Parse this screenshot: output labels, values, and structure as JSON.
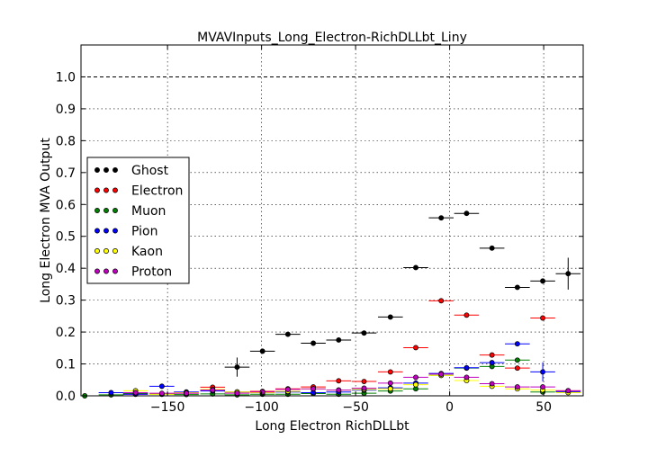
{
  "chart_data": {
    "type": "scatter",
    "title": "MVAVInputs_Long_Electron-RichDLLbt_Liny",
    "xlabel": "Long Electron RichDLLbt",
    "ylabel": "Long Electron MVA Output",
    "xlim": [
      -196,
      71
    ],
    "ylim": [
      0.0,
      1.1
    ],
    "xticks": [
      -150,
      -100,
      -50,
      0,
      50
    ],
    "xtick_labels": [
      "−150",
      "−100",
      "−50",
      "0",
      "50"
    ],
    "yticks": [
      0.0,
      0.1,
      0.2,
      0.3,
      0.4,
      0.5,
      0.6,
      0.7,
      0.8,
      0.9,
      1.0
    ],
    "ytick_labels": [
      "0.0",
      "0.1",
      "0.2",
      "0.3",
      "0.4",
      "0.5",
      "0.6",
      "0.7",
      "0.8",
      "0.9",
      "1.0"
    ],
    "grid": true,
    "reference_line": 1.0,
    "legend_position": "center-left",
    "bin_half_width": 6.6,
    "series": [
      {
        "name": "Ghost",
        "color": "#000000",
        "x": [
          -113,
          -99.5,
          -86,
          -72.5,
          -59,
          -45.5,
          -31.5,
          -18,
          -4.5,
          9,
          22.5,
          36,
          49.5,
          63
        ],
        "y": [
          0.09,
          0.14,
          0.193,
          0.165,
          0.175,
          0.197,
          0.247,
          0.402,
          0.558,
          0.572,
          0.463,
          0.34,
          0.36,
          0.383
        ],
        "yerr": [
          0.03,
          0.008,
          0.006,
          0.005,
          0.005,
          0.005,
          0.005,
          0.005,
          0.004,
          0.004,
          0.005,
          0.006,
          0.008,
          0.05
        ]
      },
      {
        "name": "Electron",
        "color": "#ff0000",
        "x": [
          -167,
          -153,
          -140,
          -126,
          -113,
          -99.5,
          -86,
          -72.5,
          -59,
          -45.5,
          -31.5,
          -18,
          -4.5,
          9,
          22.5,
          36,
          49.5,
          63
        ],
        "y": [
          0.005,
          0.006,
          0.008,
          0.027,
          0.012,
          0.014,
          0.022,
          0.028,
          0.047,
          0.045,
          0.075,
          0.151,
          0.298,
          0.253,
          0.128,
          0.087,
          0.244,
          0.016
        ],
        "yerr": [
          0.004,
          0.004,
          0.004,
          0.006,
          0.004,
          0.004,
          0.004,
          0.004,
          0.004,
          0.004,
          0.004,
          0.004,
          0.004,
          0.004,
          0.004,
          0.005,
          0.006,
          0.006
        ]
      },
      {
        "name": "Muon",
        "color": "#008000",
        "x": [
          -194,
          -180,
          -167,
          -153,
          -140,
          -126,
          -113,
          -99.5,
          -86,
          -72.5,
          -59,
          -45.5,
          -31.5,
          -18,
          -4.5,
          9,
          22.5,
          36,
          49.5,
          63
        ],
        "y": [
          0.0,
          0.003,
          0.007,
          0.005,
          0.004,
          0.006,
          0.003,
          0.005,
          0.005,
          0.007,
          0.005,
          0.008,
          0.015,
          0.022,
          0.064,
          0.087,
          0.092,
          0.112,
          0.012,
          0.012
        ],
        "yerr": [
          0.003,
          0.003,
          0.003,
          0.003,
          0.003,
          0.003,
          0.003,
          0.003,
          0.003,
          0.003,
          0.003,
          0.003,
          0.003,
          0.004,
          0.004,
          0.004,
          0.004,
          0.005,
          0.005,
          0.005
        ]
      },
      {
        "name": "Pion",
        "color": "#0000ff",
        "x": [
          -180,
          -167,
          -153,
          -140,
          -126,
          -113,
          -99.5,
          -86,
          -72.5,
          -59,
          -45.5,
          -31.5,
          -18,
          -4.5,
          9,
          22.5,
          36,
          49.5,
          63
        ],
        "y": [
          0.01,
          0.005,
          0.03,
          0.012,
          0.015,
          0.012,
          0.01,
          0.012,
          0.01,
          0.012,
          0.018,
          0.025,
          0.04,
          0.07,
          0.088,
          0.104,
          0.163,
          0.075,
          0.012
        ],
        "yerr": [
          0.003,
          0.003,
          0.004,
          0.003,
          0.003,
          0.003,
          0.003,
          0.003,
          0.003,
          0.003,
          0.003,
          0.003,
          0.003,
          0.004,
          0.004,
          0.004,
          0.005,
          0.03,
          0.006
        ]
      },
      {
        "name": "Kaon",
        "color": "#ffff00",
        "x": [
          -167,
          -153,
          -140,
          -126,
          -113,
          -99.5,
          -86,
          -72.5,
          -59,
          -45.5,
          -31.5,
          -18,
          -4.5,
          9,
          22.5,
          36,
          49.5,
          63
        ],
        "y": [
          0.016,
          0.005,
          0.01,
          0.02,
          0.012,
          0.01,
          0.014,
          0.022,
          0.018,
          0.02,
          0.022,
          0.035,
          0.064,
          0.048,
          0.03,
          0.022,
          0.018,
          0.01
        ],
        "yerr": [
          0.003,
          0.003,
          0.003,
          0.003,
          0.003,
          0.003,
          0.003,
          0.003,
          0.003,
          0.003,
          0.003,
          0.003,
          0.004,
          0.004,
          0.004,
          0.004,
          0.005,
          0.005
        ]
      },
      {
        "name": "Proton",
        "color": "#bf00bf",
        "x": [
          -167,
          -153,
          -140,
          -126,
          -113,
          -99.5,
          -86,
          -72.5,
          -59,
          -45.5,
          -31.5,
          -18,
          -4.5,
          9,
          22.5,
          36,
          49.5,
          63
        ],
        "y": [
          0.01,
          0.008,
          0.008,
          0.018,
          0.008,
          0.012,
          0.02,
          0.022,
          0.018,
          0.024,
          0.04,
          0.058,
          0.068,
          0.058,
          0.038,
          0.028,
          0.028,
          0.016
        ],
        "yerr": [
          0.003,
          0.003,
          0.003,
          0.003,
          0.003,
          0.003,
          0.003,
          0.003,
          0.003,
          0.003,
          0.003,
          0.003,
          0.004,
          0.004,
          0.004,
          0.004,
          0.005,
          0.005
        ]
      }
    ]
  }
}
